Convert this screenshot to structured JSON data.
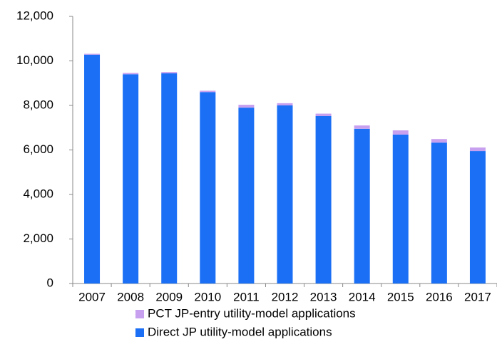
{
  "chart_data": {
    "type": "bar",
    "stacked": true,
    "categories": [
      "2007",
      "2008",
      "2009",
      "2010",
      "2011",
      "2012",
      "2013",
      "2014",
      "2015",
      "2016",
      "2017"
    ],
    "series": [
      {
        "name": "Direct JP utility-model applications",
        "color": "#1a6ff5",
        "values": [
          10280,
          9400,
          9440,
          8600,
          7900,
          8000,
          7520,
          6950,
          6690,
          6330,
          5950
        ]
      },
      {
        "name": "PCT JP-entry utility-model applications",
        "color": "#c8a0f0",
        "values": [
          40,
          60,
          60,
          60,
          130,
          100,
          110,
          150,
          190,
          160,
          160
        ]
      }
    ],
    "ylim": [
      0,
      12000
    ],
    "yticks": [
      0,
      {
        "value": 2000,
        "label": "2,000"
      },
      {
        "value": 4000,
        "label": "4,000"
      },
      {
        "value": 6000,
        "label": "6,000"
      },
      {
        "value": 8000,
        "label": "8,000"
      },
      {
        "value": 10000,
        "label": "10,000"
      },
      {
        "value": 12000,
        "label": "12,000"
      }
    ],
    "legend": "bottom"
  }
}
